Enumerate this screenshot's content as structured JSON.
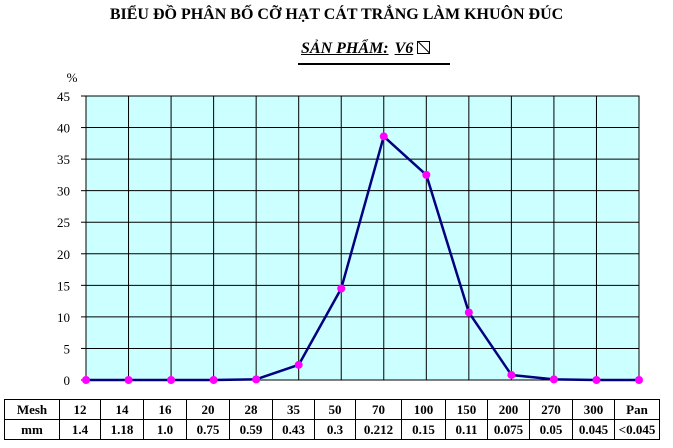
{
  "title": "BIỂU ĐỒ PHÂN BỐ CỠ HẠT CÁT TRẮNG LÀM KHUÔN ĐÚC",
  "subtitle": {
    "label": "SẢN PHẨM:",
    "product": "V6",
    "mark_icon": "boxed-slash-icon"
  },
  "colors": {
    "plot_background": "#ccffff",
    "grid": "#000000",
    "line": "#000080",
    "markers": "#ff00ff"
  },
  "chart_data": {
    "type": "line",
    "title": "BIỂU ĐỒ PHÂN BỐ CỠ HẠT CÁT TRẮNG LÀM KHUÔN ĐÚC",
    "ylabel": "%",
    "xlabel": "",
    "ylim": [
      0,
      45
    ],
    "yticks": [
      0,
      5,
      10,
      15,
      20,
      25,
      30,
      35,
      40,
      45
    ],
    "grid": true,
    "legend": "none",
    "categories": [
      "12",
      "14",
      "16",
      "20",
      "28",
      "35",
      "50",
      "70",
      "100",
      "150",
      "200",
      "270",
      "300",
      "Pan"
    ],
    "series": [
      {
        "values": [
          0,
          0,
          0,
          0,
          0.1,
          2.4,
          14.5,
          38.6,
          32.5,
          10.7,
          0.8,
          0.1,
          0,
          0
        ]
      }
    ],
    "table": {
      "row_headers": [
        "Mesh",
        "mm"
      ],
      "mesh": [
        "12",
        "14",
        "16",
        "20",
        "28",
        "35",
        "50",
        "70",
        "100",
        "150",
        "200",
        "270",
        "300",
        "Pan"
      ],
      "mm": [
        "1.4",
        "1.18",
        "1.0",
        "0.75",
        "0.59",
        "0.43",
        "0.3",
        "0.212",
        "0.15",
        "0.11",
        "0.075",
        "0.05",
        "0.045",
        "<0.045"
      ]
    }
  }
}
